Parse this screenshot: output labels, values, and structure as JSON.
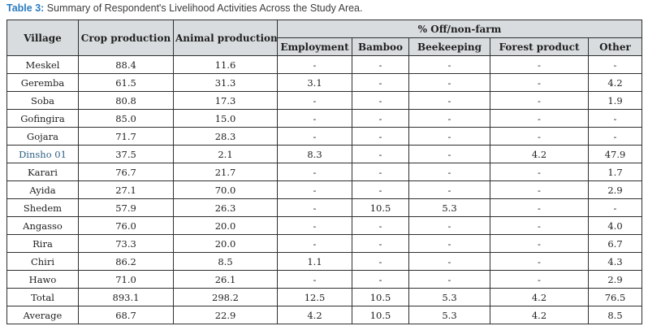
{
  "caption": {
    "label": "Table 3:",
    "text": " Summary of Respondent's Livelihood Activities Across the Study Area."
  },
  "colors": {
    "caption_accent": "#2b7bbf",
    "header_bg": "#d8dcde",
    "border": "#2f2f2f",
    "body_text": "#1f1f1f",
    "highlight_village_text": "#2e6284"
  },
  "table": {
    "fixed_columns": [
      "Village",
      "Crop production",
      "Animal production"
    ],
    "group_header": "% Off/non-farm",
    "group_columns": [
      "Employment",
      "Bamboo",
      "Beekeeping",
      "Forest product",
      "Other"
    ],
    "highlighted_village": "Dinsho 01",
    "rows": [
      [
        "Meskel",
        "88.4",
        "11.6",
        "-",
        "-",
        "-",
        "-",
        "-"
      ],
      [
        "Geremba",
        "61.5",
        "31.3",
        "3.1",
        "-",
        "-",
        "-",
        "4.2"
      ],
      [
        "Soba",
        "80.8",
        "17.3",
        "-",
        "-",
        "-",
        "-",
        "1.9"
      ],
      [
        "Gofingira",
        "85.0",
        "15.0",
        "-",
        "-",
        "-",
        "-",
        "-"
      ],
      [
        "Gojara",
        "71.7",
        "28.3",
        "-",
        "-",
        "-",
        "-",
        "-"
      ],
      [
        "Dinsho 01",
        "37.5",
        "2.1",
        "8.3",
        "-",
        "-",
        "4.2",
        "47.9"
      ],
      [
        "Karari",
        "76.7",
        "21.7",
        "-",
        "-",
        "-",
        "-",
        "1.7"
      ],
      [
        "Ayida",
        "27.1",
        "70.0",
        "-",
        "-",
        "-",
        "-",
        "2.9"
      ],
      [
        "Shedem",
        "57.9",
        "26.3",
        "-",
        "10.5",
        "5.3",
        "-",
        "-"
      ],
      [
        "Angasso",
        "76.0",
        "20.0",
        "-",
        "-",
        "-",
        "-",
        "4.0"
      ],
      [
        "Rira",
        "73.3",
        "20.0",
        "-",
        "-",
        "-",
        "-",
        "6.7"
      ],
      [
        "Chiri",
        "86.2",
        "8.5",
        "1.1",
        "-",
        "-",
        "-",
        "4.3"
      ],
      [
        "Hawo",
        "71.0",
        "26.1",
        "-",
        "-",
        "-",
        "-",
        "2.9"
      ],
      [
        "Total",
        "893.1",
        "298.2",
        "12.5",
        "10.5",
        "5.3",
        "4.2",
        "76.5"
      ],
      [
        "Average",
        "68.7",
        "22.9",
        "4.2",
        "10.5",
        "5.3",
        "4.2",
        "8.5"
      ]
    ]
  }
}
